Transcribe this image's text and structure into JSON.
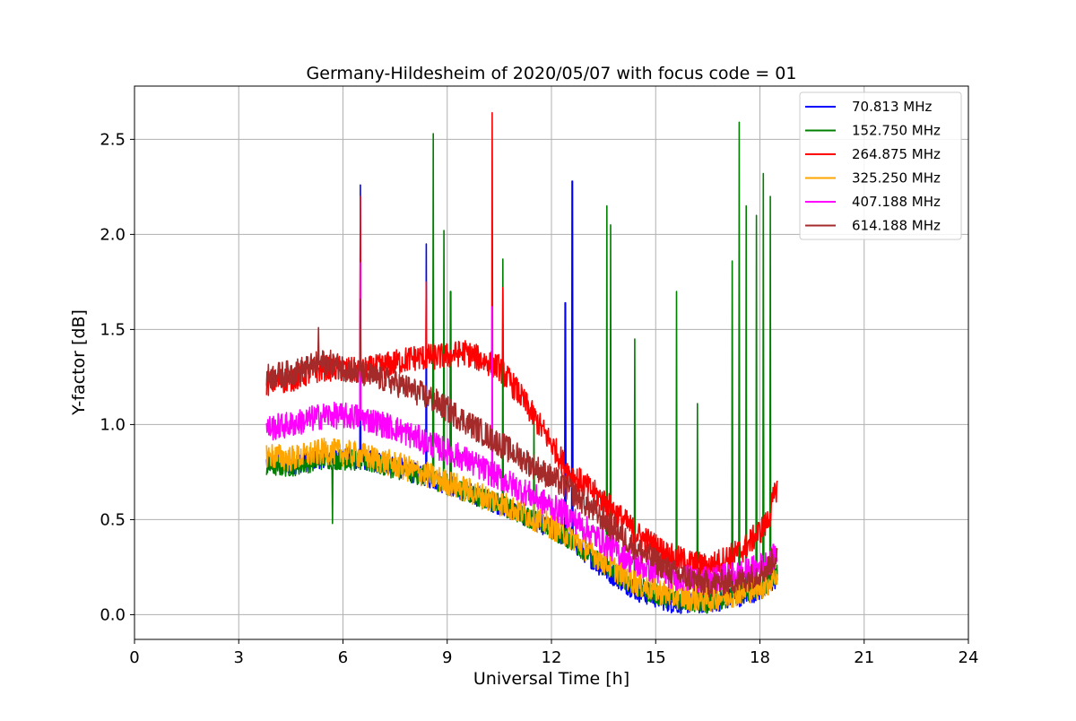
{
  "chart_data": {
    "type": "line",
    "title": "Germany-Hildesheim of 2020/05/07 with focus code = 01",
    "xlabel": "Universal Time [h]",
    "ylabel": "Y-factor [dB]",
    "xlim": [
      0,
      24
    ],
    "ylim": [
      -0.13,
      2.78
    ],
    "xticks": [
      0,
      3,
      6,
      9,
      12,
      15,
      18,
      21,
      24
    ],
    "yticks": [
      0.0,
      0.5,
      1.0,
      1.5,
      2.0,
      2.5
    ],
    "xtick_labels": [
      "0",
      "3",
      "6",
      "9",
      "12",
      "15",
      "18",
      "21",
      "24"
    ],
    "ytick_labels": [
      "0.0",
      "0.5",
      "1.0",
      "1.5",
      "2.0",
      "2.5"
    ],
    "grid": true,
    "legend_position": "top-right",
    "series": [
      {
        "name": " 70.813 MHz",
        "color": "#0000ff",
        "x": [
          3.8,
          4.5,
          5.5,
          6.5,
          7.5,
          8.5,
          9.5,
          10.5,
          11.5,
          12.5,
          13.5,
          14.5,
          15.5,
          16.5,
          17.5,
          18.2,
          18.5
        ],
        "y": [
          0.8,
          0.79,
          0.83,
          0.82,
          0.78,
          0.72,
          0.65,
          0.58,
          0.5,
          0.4,
          0.24,
          0.12,
          0.06,
          0.06,
          0.1,
          0.14,
          0.2
        ],
        "spikes": [
          [
            6.5,
            2.26
          ],
          [
            8.4,
            1.95
          ],
          [
            12.4,
            1.64
          ],
          [
            12.6,
            2.28
          ]
        ]
      },
      {
        "name": "152.750 MHz",
        "color": "#008000",
        "x": [
          3.8,
          4.5,
          5.5,
          6.5,
          7.5,
          8.5,
          9.5,
          10.5,
          11.5,
          12.5,
          13.5,
          14.5,
          15.5,
          16.5,
          17.5,
          18.2,
          18.5
        ],
        "y": [
          0.78,
          0.78,
          0.82,
          0.81,
          0.77,
          0.72,
          0.65,
          0.58,
          0.5,
          0.4,
          0.26,
          0.14,
          0.08,
          0.06,
          0.12,
          0.16,
          0.22
        ],
        "spikes": [
          [
            5.7,
            0.48
          ],
          [
            8.6,
            2.53
          ],
          [
            8.9,
            2.02
          ],
          [
            9.1,
            1.7
          ],
          [
            10.6,
            1.87
          ],
          [
            11.5,
            1.05
          ],
          [
            13.6,
            2.15
          ],
          [
            13.7,
            2.05
          ],
          [
            14.4,
            1.45
          ],
          [
            15.6,
            1.7
          ],
          [
            16.2,
            1.11
          ],
          [
            17.2,
            1.86
          ],
          [
            17.4,
            2.59
          ],
          [
            17.6,
            2.15
          ],
          [
            17.9,
            2.1
          ],
          [
            18.1,
            2.32
          ],
          [
            18.3,
            2.2
          ]
        ]
      },
      {
        "name": "264.875 MHz",
        "color": "#ff0000",
        "x": [
          3.8,
          4.5,
          5.5,
          6.5,
          7.0,
          8.0,
          9.0,
          9.5,
          10.5,
          11.0,
          12.0,
          12.5,
          13.5,
          14.5,
          15.5,
          16.5,
          17.5,
          18.2,
          18.5
        ],
        "y": [
          1.22,
          1.24,
          1.3,
          1.28,
          1.3,
          1.35,
          1.36,
          1.38,
          1.3,
          1.18,
          0.9,
          0.75,
          0.6,
          0.42,
          0.3,
          0.25,
          0.34,
          0.48,
          0.68
        ],
        "spikes": [
          [
            6.5,
            2.2
          ],
          [
            8.4,
            1.75
          ],
          [
            10.3,
            2.64
          ],
          [
            10.6,
            1.72
          ]
        ]
      },
      {
        "name": "325.250 MHz",
        "color": "#ffa500",
        "x": [
          3.8,
          4.5,
          5.5,
          6.5,
          7.5,
          8.5,
          9.5,
          10.5,
          11.5,
          12.5,
          13.5,
          14.5,
          15.5,
          16.5,
          17.5,
          18.2,
          18.5
        ],
        "y": [
          0.84,
          0.82,
          0.86,
          0.84,
          0.79,
          0.73,
          0.66,
          0.59,
          0.51,
          0.42,
          0.28,
          0.16,
          0.1,
          0.08,
          0.12,
          0.16,
          0.22
        ],
        "spikes": []
      },
      {
        "name": "407.188 MHz",
        "color": "#ff00ff",
        "x": [
          3.8,
          4.5,
          5.5,
          6.5,
          7.5,
          8.5,
          9.5,
          10.5,
          11.5,
          12.5,
          13.5,
          14.5,
          15.5,
          16.5,
          17.5,
          18.2,
          18.5
        ],
        "y": [
          0.98,
          1.0,
          1.05,
          1.04,
          0.98,
          0.9,
          0.82,
          0.72,
          0.62,
          0.52,
          0.38,
          0.26,
          0.2,
          0.18,
          0.22,
          0.27,
          0.32
        ],
        "spikes": [
          [
            6.5,
            1.85
          ],
          [
            10.3,
            1.62
          ]
        ]
      },
      {
        "name": "614.188 MHz",
        "color": "#a52a2a",
        "x": [
          3.8,
          4.5,
          5.5,
          6.5,
          7.5,
          8.5,
          9.5,
          10.5,
          11.5,
          12.5,
          13.5,
          14.5,
          15.5,
          16.5,
          17.5,
          18.2,
          18.5
        ],
        "y": [
          1.25,
          1.27,
          1.33,
          1.27,
          1.22,
          1.14,
          1.02,
          0.9,
          0.78,
          0.66,
          0.5,
          0.34,
          0.22,
          0.16,
          0.18,
          0.24,
          0.32
        ],
        "spikes": [
          [
            5.3,
            1.51
          ],
          [
            6.5,
            1.66
          ]
        ]
      }
    ]
  }
}
